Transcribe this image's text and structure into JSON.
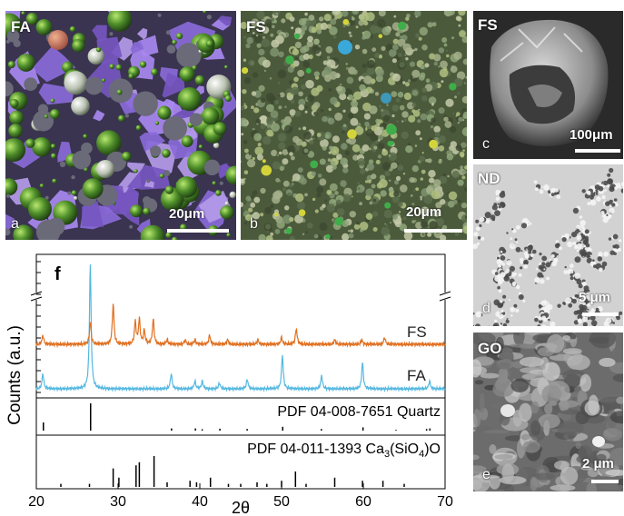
{
  "panels": {
    "a": {
      "label": "FA",
      "letter": "a",
      "scale": "20μm"
    },
    "b": {
      "label": "FS",
      "letter": "b",
      "scale": "20μm"
    },
    "c": {
      "label": "FS",
      "letter": "c",
      "scale": "100μm"
    },
    "d": {
      "label": "ND",
      "letter": "d",
      "scale": "5 μm"
    },
    "e": {
      "label": "GO",
      "letter": "e",
      "scale": "2 μm"
    }
  },
  "colors": {
    "fs_trace": "#e07020",
    "fa_trace": "#55b8e0",
    "ref_line": "#000000"
  },
  "chart_data": {
    "type": "line",
    "panel_letter": "f",
    "xlabel": "2θ",
    "ylabel": "Counts (a.u.)",
    "xlim": [
      20,
      70
    ],
    "xticks": [
      20,
      30,
      40,
      50,
      60,
      70
    ],
    "series": [
      {
        "name": "FS",
        "peaks": [
          [
            20.8,
            2
          ],
          [
            26.6,
            5
          ],
          [
            29.4,
            9
          ],
          [
            32.1,
            5
          ],
          [
            32.6,
            5.5
          ],
          [
            33.2,
            3
          ],
          [
            34.3,
            5.5
          ],
          [
            36.0,
            1
          ],
          [
            38.2,
            1
          ],
          [
            39.4,
            1
          ],
          [
            41.2,
            2
          ],
          [
            43.4,
            1
          ],
          [
            47.1,
            1
          ],
          [
            50.0,
            1.5
          ],
          [
            51.8,
            3.5
          ],
          [
            56.5,
            1
          ],
          [
            59.8,
            1
          ],
          [
            62.6,
            1.5
          ]
        ]
      },
      {
        "name": "FA",
        "peaks": [
          [
            20.8,
            4
          ],
          [
            26.6,
            33
          ],
          [
            36.5,
            4
          ],
          [
            39.4,
            2
          ],
          [
            40.3,
            2
          ],
          [
            42.4,
            1.5
          ],
          [
            45.8,
            2.5
          ],
          [
            50.1,
            9
          ],
          [
            54.9,
            3.5
          ],
          [
            59.9,
            7
          ],
          [
            68.1,
            2
          ]
        ]
      }
    ],
    "references": [
      {
        "name": "PDF 04-008-7651 Quartz",
        "lines": [
          [
            20.86,
            0.3
          ],
          [
            26.64,
            1.0
          ],
          [
            36.54,
            0.08
          ],
          [
            39.46,
            0.08
          ],
          [
            40.29,
            0.05
          ],
          [
            42.45,
            0.07
          ],
          [
            45.79,
            0.06
          ],
          [
            50.14,
            0.14
          ],
          [
            54.87,
            0.06
          ],
          [
            59.96,
            0.12
          ],
          [
            64.0,
            0.03
          ],
          [
            67.74,
            0.06
          ],
          [
            68.14,
            0.08
          ]
        ]
      },
      {
        "name": "PDF 04-011-1393 Ca3(SiO4)O",
        "lines": [
          [
            23.0,
            0.1
          ],
          [
            26.5,
            0.1
          ],
          [
            29.4,
            0.6
          ],
          [
            30.1,
            0.3
          ],
          [
            32.2,
            0.7
          ],
          [
            32.6,
            0.8
          ],
          [
            34.4,
            1.0
          ],
          [
            36.0,
            0.15
          ],
          [
            38.8,
            0.2
          ],
          [
            39.6,
            0.15
          ],
          [
            41.3,
            0.3
          ],
          [
            43.5,
            0.1
          ],
          [
            45.0,
            0.1
          ],
          [
            47.0,
            0.15
          ],
          [
            48.2,
            0.1
          ],
          [
            50.0,
            0.2
          ],
          [
            51.7,
            0.5
          ],
          [
            53.0,
            0.1
          ],
          [
            56.5,
            0.3
          ],
          [
            59.9,
            0.2
          ],
          [
            62.4,
            0.2
          ],
          [
            65.0,
            0.1
          ]
        ]
      }
    ]
  }
}
